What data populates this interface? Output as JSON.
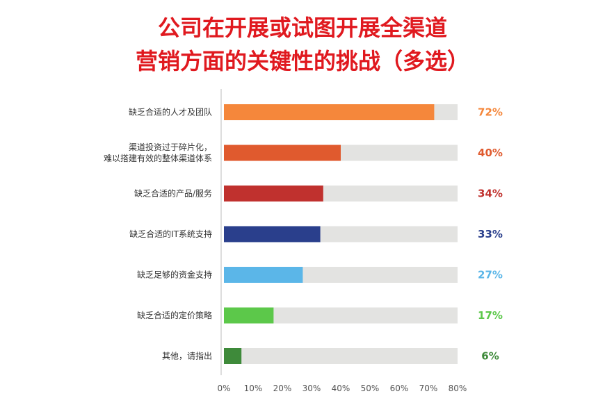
{
  "title_line1": "公司在开展或试图开展全渠道",
  "title_line2": "营销方面的关键性的挑战（多选）",
  "chart_data": {
    "type": "bar",
    "orientation": "horizontal",
    "categories": [
      [
        "缺乏合适的人才及团队"
      ],
      [
        "渠道投资过于碎片化，",
        "难以搭建有效的整体渠道体系"
      ],
      [
        "缺乏合适的产品/服务"
      ],
      [
        "缺乏合适的IT系统支持"
      ],
      [
        "缺乏足够的资金支持"
      ],
      [
        "缺乏合适的定价策略"
      ],
      [
        "其他，请指出"
      ]
    ],
    "values": [
      72,
      40,
      34,
      33,
      27,
      17,
      6
    ],
    "value_labels": [
      "72%",
      "40%",
      "34%",
      "33%",
      "27%",
      "17%",
      "6%"
    ],
    "colors": [
      "#f5873b",
      "#e05a2e",
      "#c0312e",
      "#2a3f8c",
      "#5bb6e8",
      "#5cc84a",
      "#3e8a3a"
    ],
    "track_color": "#e3e3e1",
    "xlim": [
      0,
      80
    ],
    "xticks": [
      "0%",
      "10%",
      "20%",
      "30%",
      "40%",
      "50%",
      "60%",
      "70%",
      "80%"
    ],
    "xtick_values": [
      0,
      10,
      20,
      30,
      40,
      50,
      60,
      70,
      80
    ],
    "grid": false
  }
}
